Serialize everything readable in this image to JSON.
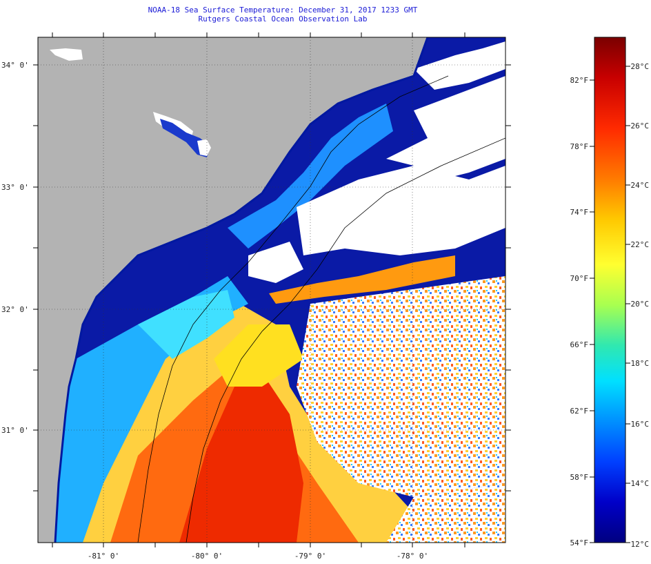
{
  "header": {
    "title": "NOAA-18 Sea Surface Temperature:  December 31, 2017 1233 GMT",
    "subtitle": "Rutgers Coastal Ocean Observation Lab"
  },
  "map": {
    "lon_labels": [
      "-81° 0'",
      "-80° 0'",
      "-79° 0'",
      "-78° 0'"
    ],
    "lat_labels": [
      "34° 0'",
      "33° 0'",
      "32° 0'",
      "31° 0'"
    ],
    "colors": {
      "land": "#b3b3b3",
      "cloud": "#ffffff",
      "cold_water": "#0a1aa6",
      "frame": "#000000"
    }
  },
  "colorbar": {
    "fahrenheit_labels": [
      "82°F",
      "78°F",
      "74°F",
      "70°F",
      "66°F",
      "62°F",
      "58°F",
      "54°F"
    ],
    "celsius_labels": [
      "28°C",
      "26°C",
      "24°C",
      "22°C",
      "20°C",
      "18°C",
      "16°C",
      "14°C",
      "12°C"
    ],
    "range_c": [
      12,
      29.5
    ],
    "colors_top_to_bottom": [
      "#7a0000",
      "#c80000",
      "#ff2a00",
      "#ff7a00",
      "#ffc800",
      "#ffff30",
      "#a8ff50",
      "#30e8b0",
      "#00e0ff",
      "#0090ff",
      "#0040ff",
      "#0000c8",
      "#000080"
    ]
  }
}
